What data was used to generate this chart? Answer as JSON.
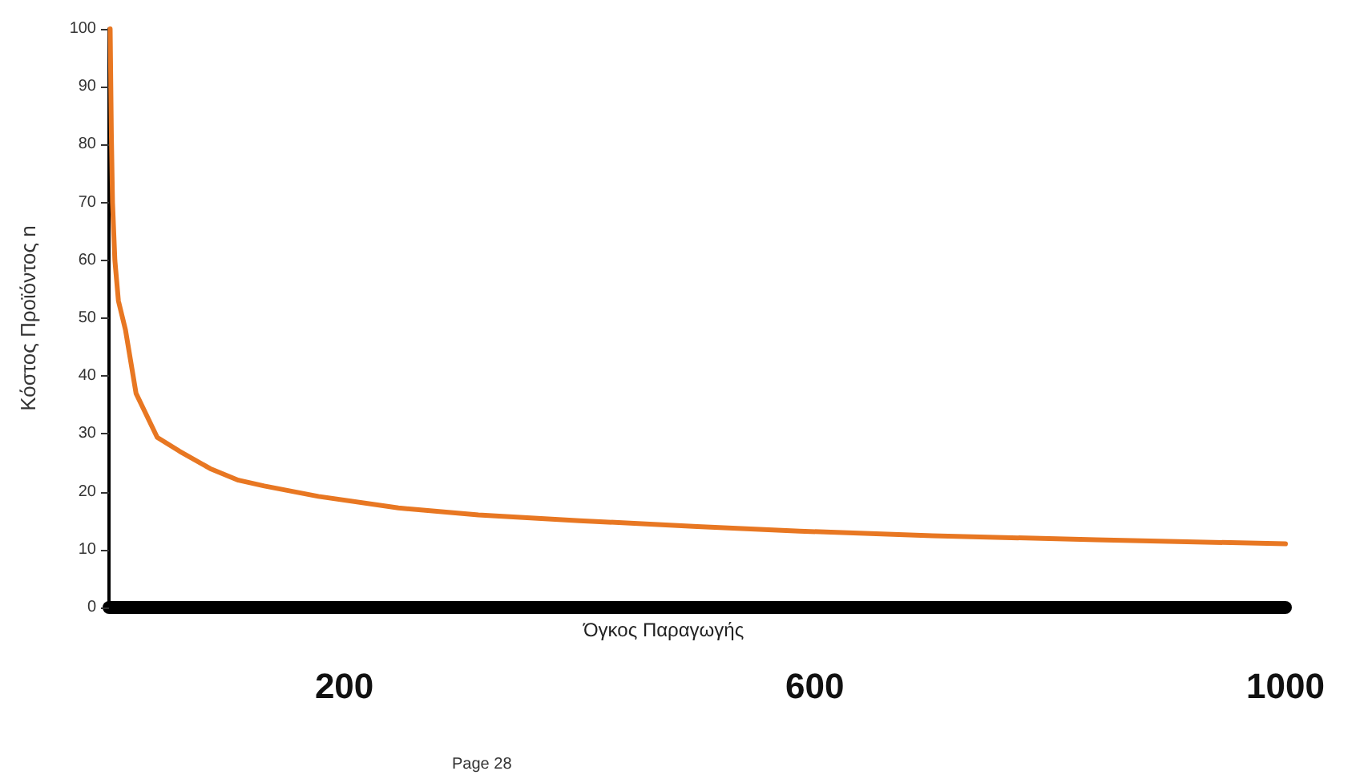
{
  "chart_data": {
    "type": "line",
    "xlabel": "Όγκος Παραγωγής",
    "ylabel": "Κόστος Προϊόντος n",
    "x": [
      1,
      2,
      3,
      5,
      8,
      14,
      23,
      41,
      60,
      86,
      110,
      132,
      178,
      246,
      314,
      400,
      500,
      587,
      700,
      839,
      1000
    ],
    "series": [
      {
        "color": "#e87722",
        "values": [
          100,
          82,
          70,
          60,
          53,
          48,
          37,
          29.4,
          27,
          24,
          22,
          21,
          19.2,
          17.2,
          16,
          15,
          14,
          13.2,
          12.4,
          11.7,
          11
        ]
      }
    ],
    "xlim": [
      0,
      1000
    ],
    "xticks": [
      200,
      600,
      1000
    ],
    "ylim": [
      0,
      100
    ],
    "yticks": [
      0,
      10,
      20,
      30,
      40,
      50,
      60,
      70,
      80,
      90,
      100
    ],
    "grid": false,
    "marker": "none",
    "line_style": "solid",
    "annotations": [
      "Page 28"
    ]
  }
}
